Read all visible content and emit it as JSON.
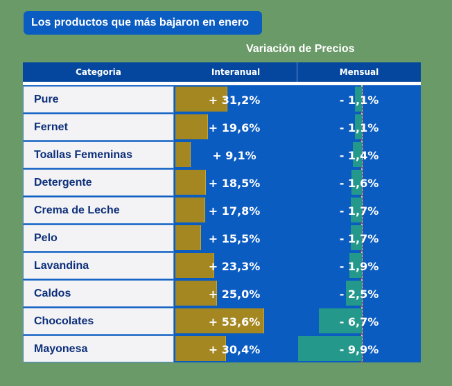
{
  "title": "Los productos que más bajaron en enero",
  "subtitle": "Variación de Precios",
  "colors": {
    "background": "#6a9a68",
    "table": "#0b5cc1",
    "interanual_bar": "#a58722",
    "mensual_bar": "#24998b",
    "category_text": "#0d2f7a"
  },
  "chart_data": {
    "type": "table",
    "columns": [
      "Categoria",
      "Interanual",
      "Mensual"
    ],
    "rows": [
      {
        "category": "Pure",
        "interanual": 31.2,
        "interanual_label": "+ 31,2%",
        "mensual": -1.1,
        "mensual_label": "- 1,1%"
      },
      {
        "category": "Fernet",
        "interanual": 19.6,
        "interanual_label": "+ 19,6%",
        "mensual": -1.1,
        "mensual_label": "- 1,1%"
      },
      {
        "category": "Toallas Femeninas",
        "interanual": 9.1,
        "interanual_label": "+ 9,1%",
        "mensual": -1.4,
        "mensual_label": "- 1,4%"
      },
      {
        "category": "Detergente",
        "interanual": 18.5,
        "interanual_label": "+ 18,5%",
        "mensual": -1.6,
        "mensual_label": "- 1,6%"
      },
      {
        "category": "Crema de Leche",
        "interanual": 17.8,
        "interanual_label": "+ 17,8%",
        "mensual": -1.7,
        "mensual_label": "- 1,7%"
      },
      {
        "category": "Pelo",
        "interanual": 15.5,
        "interanual_label": "+ 15,5%",
        "mensual": -1.7,
        "mensual_label": "- 1,7%"
      },
      {
        "category": "Lavandina",
        "interanual": 23.3,
        "interanual_label": "+ 23,3%",
        "mensual": -1.9,
        "mensual_label": "- 1,9%"
      },
      {
        "category": "Caldos",
        "interanual": 25.0,
        "interanual_label": "+ 25,0%",
        "mensual": -2.5,
        "mensual_label": "- 2,5%"
      },
      {
        "category": "Chocolates",
        "interanual": 53.6,
        "interanual_label": "+ 53,6%",
        "mensual": -6.7,
        "mensual_label": "- 6,7%"
      },
      {
        "category": "Mayonesa",
        "interanual": 30.4,
        "interanual_label": "+ 30,4%",
        "mensual": -9.9,
        "mensual_label": "- 9,9%"
      }
    ]
  }
}
